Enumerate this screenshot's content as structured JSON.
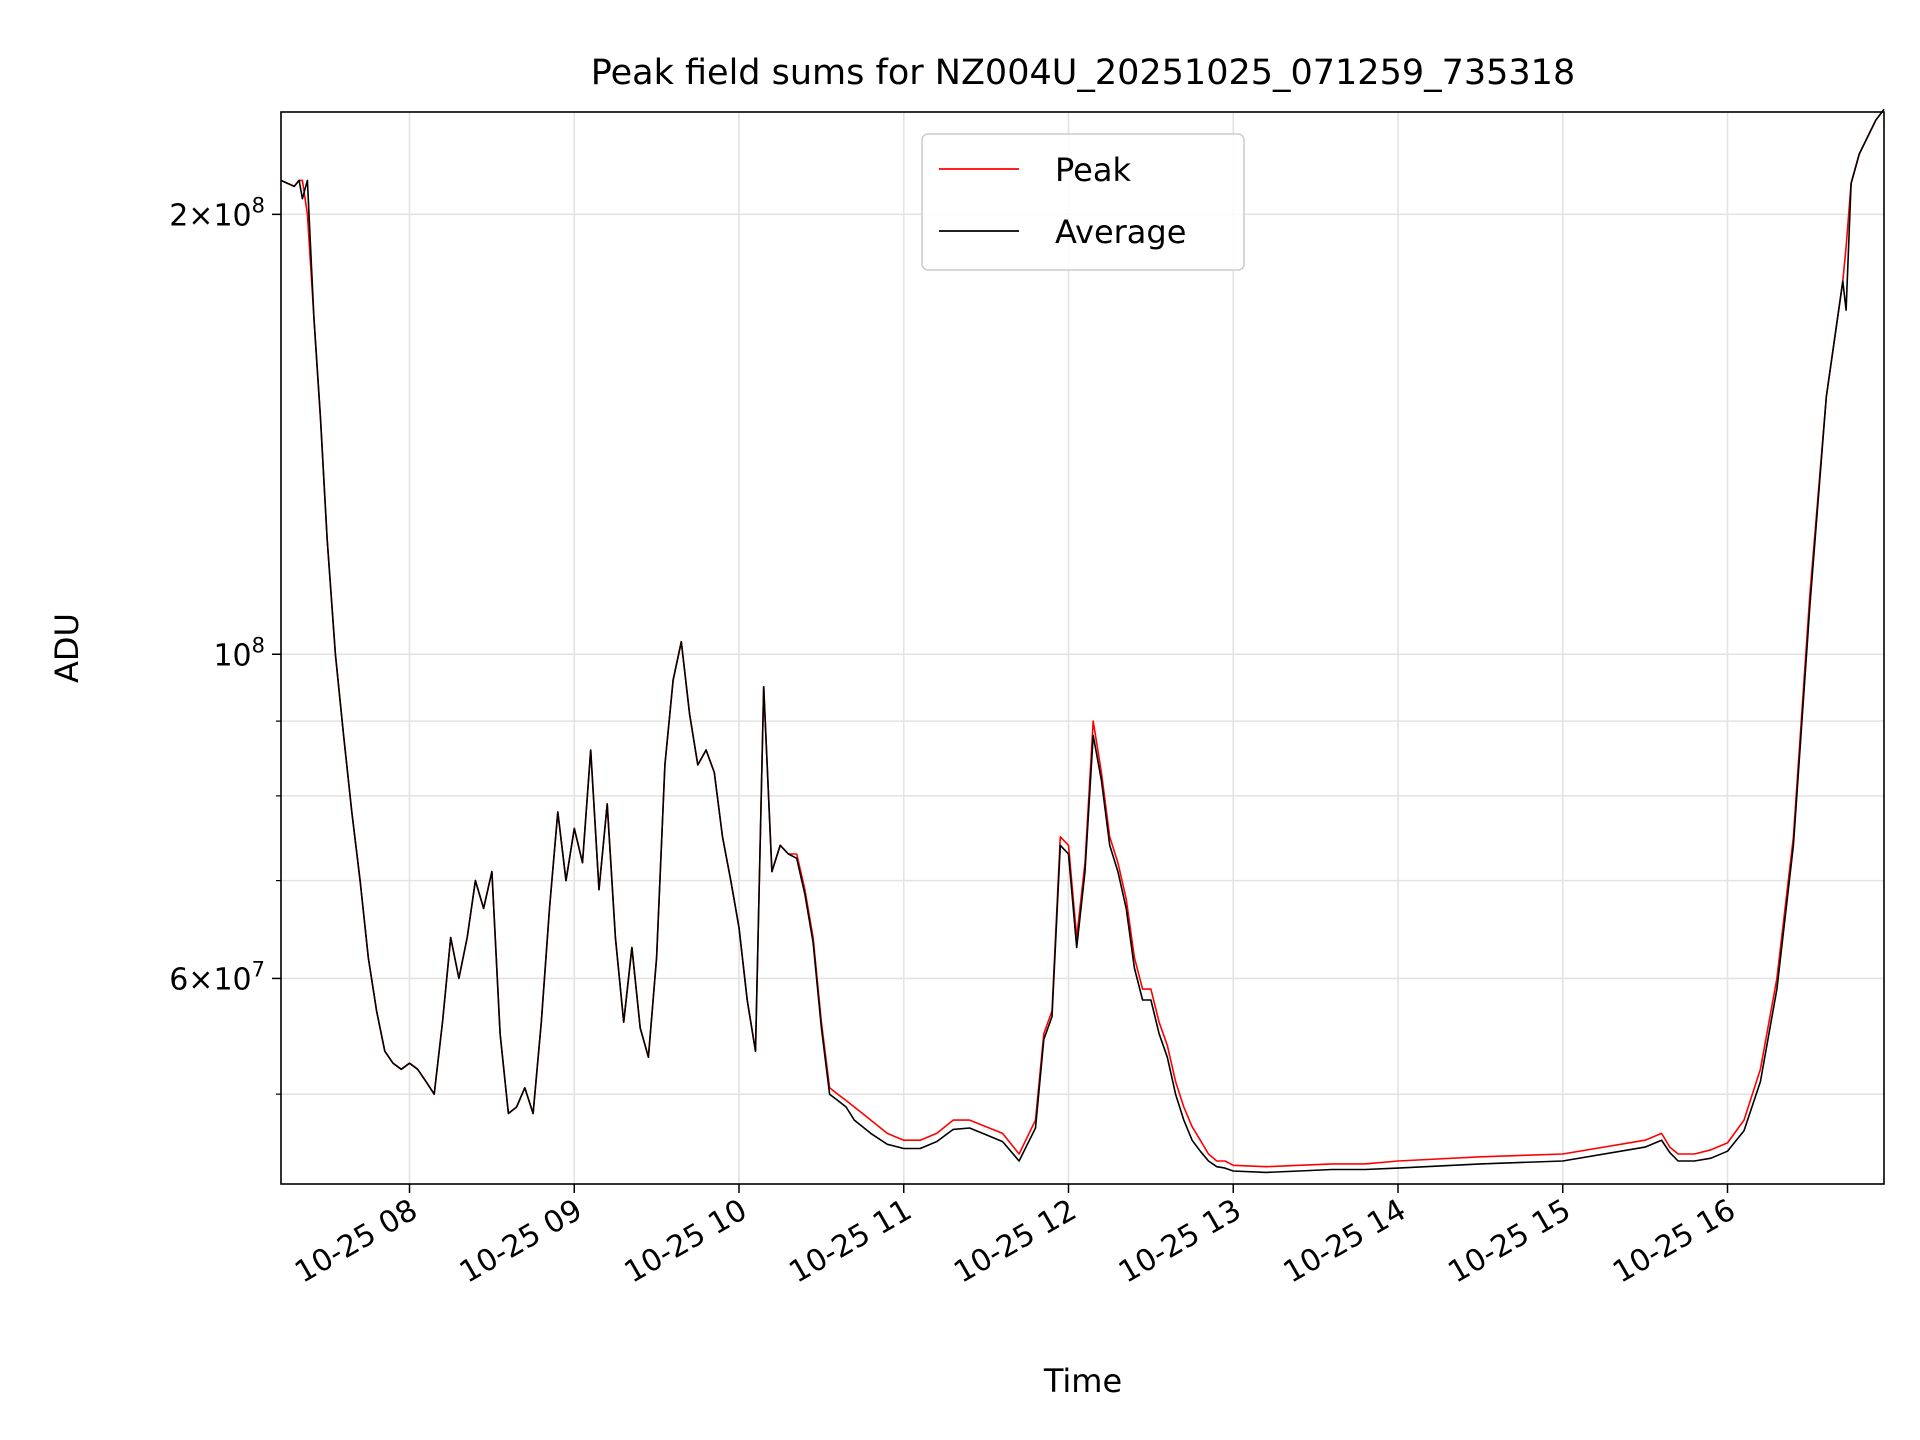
{
  "chart_data": {
    "type": "line",
    "title": "Peak field sums for NZ004U_20251025_071259_735318",
    "xlabel": "Time",
    "ylabel": "ADU",
    "yscale": "log",
    "xlim": [
      7.22,
      16.95
    ],
    "ylim": [
      43400000,
      235000000
    ],
    "grid": true,
    "legend_position": "top-center",
    "x_tick_labels": [
      "10-25 08",
      "10-25 09",
      "10-25 10",
      "10-25 11",
      "10-25 12",
      "10-25 13",
      "10-25 14",
      "10-25 15",
      "10-25 16"
    ],
    "x_tick_values": [
      8,
      9,
      10,
      11,
      12,
      13,
      14,
      15,
      16
    ],
    "y_major_ticks": [
      {
        "value": 60000000,
        "base": "6×10",
        "exp": "7"
      },
      {
        "value": 100000000,
        "base": "10",
        "exp": "8"
      },
      {
        "value": 200000000,
        "base": "2×10",
        "exp": "8"
      }
    ],
    "y_minor_ticks": [
      50000000,
      70000000,
      80000000,
      90000000
    ],
    "x": [
      7.22,
      7.3,
      7.33,
      7.35,
      7.38,
      7.42,
      7.46,
      7.5,
      7.55,
      7.6,
      7.65,
      7.7,
      7.75,
      7.8,
      7.85,
      7.9,
      7.95,
      8.0,
      8.05,
      8.1,
      8.15,
      8.2,
      8.25,
      8.3,
      8.35,
      8.4,
      8.45,
      8.5,
      8.55,
      8.6,
      8.65,
      8.7,
      8.75,
      8.8,
      8.85,
      8.9,
      8.95,
      9.0,
      9.05,
      9.1,
      9.15,
      9.2,
      9.25,
      9.3,
      9.35,
      9.4,
      9.45,
      9.5,
      9.55,
      9.6,
      9.65,
      9.7,
      9.75,
      9.8,
      9.85,
      9.9,
      9.95,
      10.0,
      10.05,
      10.1,
      10.15,
      10.2,
      10.25,
      10.3,
      10.35,
      10.4,
      10.45,
      10.5,
      10.55,
      10.6,
      10.65,
      10.7,
      10.75,
      10.8,
      10.9,
      11.0,
      11.1,
      11.2,
      11.3,
      11.4,
      11.5,
      11.6,
      11.7,
      11.8,
      11.85,
      11.9,
      11.95,
      12.0,
      12.05,
      12.1,
      12.15,
      12.2,
      12.25,
      12.3,
      12.35,
      12.4,
      12.45,
      12.5,
      12.55,
      12.6,
      12.65,
      12.7,
      12.75,
      12.8,
      12.85,
      12.9,
      12.95,
      13.0,
      13.2,
      13.4,
      13.6,
      13.8,
      14.0,
      14.5,
      15.0,
      15.5,
      15.6,
      15.65,
      15.7,
      15.8,
      15.9,
      16.0,
      16.1,
      16.2,
      16.3,
      16.4,
      16.5,
      16.6,
      16.7,
      16.72,
      16.75,
      16.8,
      16.9,
      16.95
    ],
    "series": [
      {
        "name": "Peak",
        "color": "#ff0000",
        "values": [
          211000000,
          209000000,
          211000000,
          211000000,
          200000000,
          170000000,
          145000000,
          120000000,
          100000000,
          88000000,
          78000000,
          70000000,
          62000000,
          57000000,
          53500000,
          52500000,
          52000000,
          52500000,
          52000000,
          51000000,
          50000000,
          56000000,
          64000000,
          60000000,
          64000000,
          70000000,
          67000000,
          71000000,
          55000000,
          48500000,
          49000000,
          50500000,
          48500000,
          56000000,
          67000000,
          78000000,
          70000000,
          76000000,
          72000000,
          86000000,
          69000000,
          79000000,
          64000000,
          56000000,
          63000000,
          55500000,
          53000000,
          62000000,
          84000000,
          96000000,
          102000000,
          91000000,
          84000000,
          86000000,
          83000000,
          75000000,
          70000000,
          65000000,
          58000000,
          53500000,
          95000000,
          71000000,
          74000000,
          73000000,
          73000000,
          69000000,
          64000000,
          56000000,
          50500000,
          50000000,
          49500000,
          49000000,
          48500000,
          48000000,
          47000000,
          46500000,
          46500000,
          47000000,
          48000000,
          48000000,
          47500000,
          47000000,
          45500000,
          48000000,
          55000000,
          57000000,
          75000000,
          74000000,
          64000000,
          72000000,
          90000000,
          83000000,
          75000000,
          72000000,
          68000000,
          62000000,
          59000000,
          59000000,
          56000000,
          54000000,
          51000000,
          49000000,
          47500000,
          46500000,
          45500000,
          45000000,
          45000000,
          44700000,
          44600000,
          44700000,
          44800000,
          44800000,
          45000000,
          45300000,
          45500000,
          46500000,
          47000000,
          46000000,
          45500000,
          45500000,
          45800000,
          46300000,
          48000000,
          52000000,
          60000000,
          75000000,
          110000000,
          150000000,
          180000000,
          190000000,
          210000000,
          220000000,
          232000000,
          236000000
        ]
      },
      {
        "name": "Average",
        "color": "#000000",
        "values": [
          211000000,
          209000000,
          211000000,
          205000000,
          211000000,
          170000000,
          145000000,
          120000000,
          100000000,
          88000000,
          78000000,
          70000000,
          62000000,
          57000000,
          53500000,
          52500000,
          52000000,
          52500000,
          52000000,
          51000000,
          50000000,
          56000000,
          64000000,
          60000000,
          64000000,
          70000000,
          67000000,
          71000000,
          55000000,
          48500000,
          49000000,
          50500000,
          48500000,
          56000000,
          67000000,
          78000000,
          70000000,
          76000000,
          72000000,
          86000000,
          69000000,
          79000000,
          64000000,
          56000000,
          63000000,
          55500000,
          53000000,
          62000000,
          84000000,
          96000000,
          102000000,
          91000000,
          84000000,
          86000000,
          83000000,
          75000000,
          70000000,
          65000000,
          58000000,
          53500000,
          95000000,
          71000000,
          74000000,
          73000000,
          72500000,
          68500000,
          63500000,
          55500000,
          50000000,
          49500000,
          49000000,
          48000000,
          47500000,
          47000000,
          46200000,
          45900000,
          45900000,
          46400000,
          47300000,
          47400000,
          46900000,
          46400000,
          45000000,
          47400000,
          54500000,
          56500000,
          74000000,
          73000000,
          63000000,
          71000000,
          88000000,
          82000000,
          74000000,
          71000000,
          67000000,
          61000000,
          58000000,
          58000000,
          55000000,
          53000000,
          50000000,
          48000000,
          46500000,
          45700000,
          45000000,
          44600000,
          44500000,
          44300000,
          44200000,
          44300000,
          44400000,
          44400000,
          44500000,
          44800000,
          45000000,
          46000000,
          46500000,
          45600000,
          45000000,
          45000000,
          45200000,
          45700000,
          47200000,
          51000000,
          59000000,
          74000000,
          108000000,
          150000000,
          180000000,
          172000000,
          210000000,
          220000000,
          232000000,
          236000000
        ]
      }
    ]
  }
}
